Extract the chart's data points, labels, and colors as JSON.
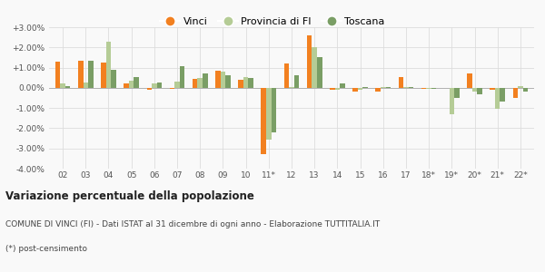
{
  "categories": [
    "02",
    "03",
    "04",
    "05",
    "06",
    "07",
    "08",
    "09",
    "10",
    "11*",
    "12",
    "13",
    "14",
    "15",
    "16",
    "17",
    "18*",
    "19*",
    "20*",
    "21*",
    "22*"
  ],
  "vinci": [
    1.3,
    1.35,
    1.25,
    0.2,
    -0.1,
    -0.05,
    0.45,
    0.85,
    0.4,
    -3.3,
    1.2,
    2.6,
    -0.1,
    -0.2,
    -0.2,
    0.55,
    -0.05,
    0.0,
    0.7,
    -0.1,
    -0.5
  ],
  "provincia": [
    0.2,
    0.25,
    2.3,
    0.35,
    0.2,
    0.3,
    0.5,
    0.8,
    0.55,
    -2.55,
    0.05,
    2.0,
    -0.1,
    -0.1,
    0.05,
    0.05,
    -0.05,
    -1.3,
    -0.2,
    -1.05,
    0.1
  ],
  "toscana": [
    0.1,
    1.35,
    0.9,
    0.55,
    0.25,
    1.05,
    0.7,
    0.6,
    0.5,
    -2.2,
    0.6,
    1.5,
    0.2,
    0.05,
    0.05,
    0.05,
    -0.05,
    -0.5,
    -0.3,
    -0.7,
    -0.2
  ],
  "vinci_color": "#f28020",
  "provincia_color": "#b5cc96",
  "toscana_color": "#7a9e65",
  "bg_color": "#f9f9f9",
  "grid_color": "#dddddd",
  "ylim": [
    -4.0,
    3.0
  ],
  "yticks": [
    -4.0,
    -3.0,
    -2.0,
    -1.0,
    0.0,
    1.0,
    2.0,
    3.0
  ],
  "title": "Variazione percentuale della popolazione",
  "subtitle": "COMUNE DI VINCI (FI) - Dati ISTAT al 31 dicembre di ogni anno - Elaborazione TUTTITALIA.IT",
  "footnote": "(*) post-censimento",
  "bar_width": 0.22
}
